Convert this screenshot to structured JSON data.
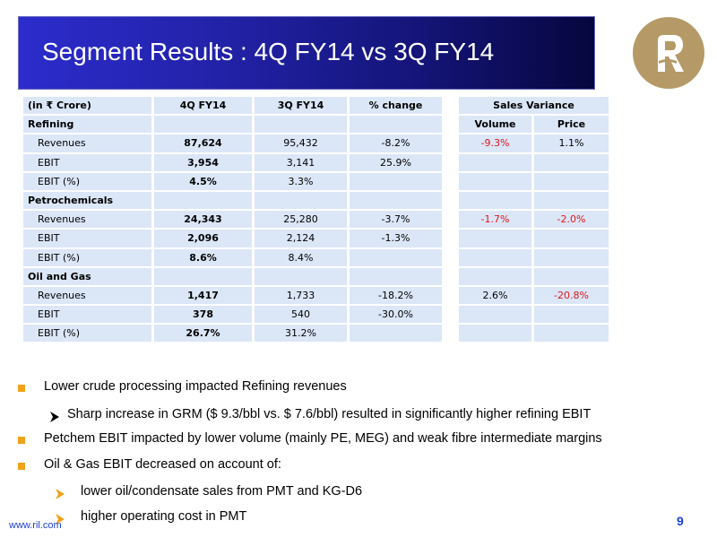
{
  "slide": {
    "title": "Segment Results : 4Q FY14 vs 3Q FY14",
    "footer_url": "www.ril.com",
    "page_number": "9"
  },
  "table": {
    "header": {
      "unit": "(in ₹ Crore)",
      "col1": "4Q FY14",
      "col2": "3Q FY14",
      "col3": "% change",
      "sales_variance": "Sales Variance"
    },
    "sub_header": {
      "volume": "Volume",
      "price": "Price"
    },
    "segments": [
      {
        "name": "Refining",
        "rows": [
          {
            "label": "Revenues",
            "q4": "87,624",
            "q3": "95,432",
            "change": "-8.2%",
            "volume": "-9.3%",
            "price": "1.1%"
          },
          {
            "label": "EBIT",
            "q4": "3,954",
            "q3": "3,141",
            "change": "25.9%",
            "volume": "",
            "price": ""
          },
          {
            "label": "EBIT (%)",
            "q4": "4.5%",
            "q3": "3.3%",
            "change": "",
            "volume": "",
            "price": ""
          }
        ]
      },
      {
        "name": "Petrochemicals",
        "rows": [
          {
            "label": "Revenues",
            "q4": "24,343",
            "q3": "25,280",
            "change": "-3.7%",
            "volume": "-1.7%",
            "price": "-2.0%"
          },
          {
            "label": "EBIT",
            "q4": "2,096",
            "q3": "2,124",
            "change": "-1.3%",
            "volume": "",
            "price": ""
          },
          {
            "label": "EBIT (%)",
            "q4": "8.6%",
            "q3": "8.4%",
            "change": "",
            "volume": "",
            "price": ""
          }
        ]
      },
      {
        "name": "Oil and Gas",
        "rows": [
          {
            "label": "Revenues",
            "q4": "1,417",
            "q3": "1,733",
            "change": "-18.2%",
            "volume": "2.6%",
            "price": "-20.8%"
          },
          {
            "label": "EBIT",
            "q4": "378",
            "q3": "540",
            "change": "-30.0%",
            "volume": "",
            "price": ""
          },
          {
            "label": "EBIT (%)",
            "q4": "26.7%",
            "q3": "31.2%",
            "change": "",
            "volume": "",
            "price": ""
          }
        ]
      }
    ]
  },
  "bullets": [
    "Lower crude processing impacted Refining revenues",
    "Sharp increase in GRM ($ 9.3/bbl vs. $ 7.6/bbl) resulted in significantly higher refining EBIT",
    "Petchem EBIT impacted by lower volume (mainly PE, MEG) and weak fibre intermediate margins",
    "Oil & Gas EBIT decreased on account of:",
    "lower oil/condensate sales from PMT and KG-D6",
    "higher operating cost in PMT"
  ],
  "colors": {
    "negative_variance": "#e0161a",
    "bullet_square": "#f0a21a",
    "table_cell": "#dbe6f7",
    "logo_gold": "#b59a67",
    "footer_blue": "#1a3fd0"
  }
}
